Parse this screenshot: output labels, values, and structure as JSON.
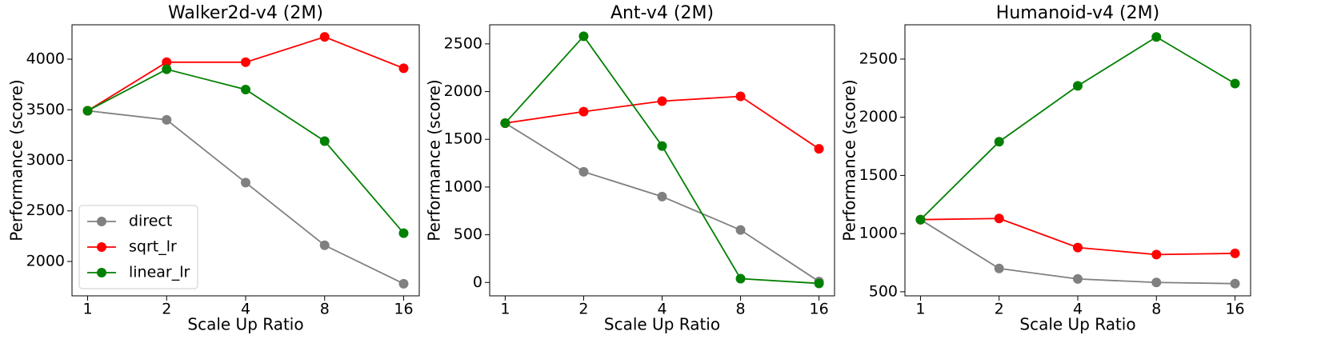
{
  "chart_data": [
    {
      "type": "line",
      "title": "Walker2d-v4 (2M)",
      "xlabel": "Scale Up Ratio",
      "ylabel": "Performance (score)",
      "categories": [
        "1",
        "2",
        "4",
        "8",
        "16"
      ],
      "ylim": [
        1660,
        4340
      ],
      "yticks": [
        2000,
        2500,
        3000,
        3500,
        4000
      ],
      "legend": "lower left",
      "series": [
        {
          "name": "direct",
          "color": "#808080",
          "values": [
            3490,
            3400,
            2780,
            2160,
            1780
          ]
        },
        {
          "name": "sqrt_lr",
          "color": "#ff0000",
          "values": [
            3490,
            3970,
            3970,
            4220,
            3910
          ]
        },
        {
          "name": "linear_lr",
          "color": "#008000",
          "values": [
            3490,
            3900,
            3700,
            3190,
            2280
          ]
        }
      ]
    },
    {
      "type": "line",
      "title": "Ant-v4 (2M)",
      "xlabel": "Scale Up Ratio",
      "ylabel": "Performance (score)",
      "categories": [
        "1",
        "2",
        "4",
        "8",
        "16"
      ],
      "ylim": [
        -140,
        2700
      ],
      "yticks": [
        0,
        500,
        1000,
        1500,
        2000,
        2500
      ],
      "series": [
        {
          "name": "direct",
          "color": "#808080",
          "values": [
            1670,
            1160,
            900,
            550,
            10
          ]
        },
        {
          "name": "sqrt_lr",
          "color": "#ff0000",
          "values": [
            1670,
            1790,
            1900,
            1950,
            1400
          ]
        },
        {
          "name": "linear_lr",
          "color": "#008000",
          "values": [
            1670,
            2580,
            1430,
            40,
            -10
          ]
        }
      ]
    },
    {
      "type": "line",
      "title": "Humanoid-v4 (2M)",
      "xlabel": "Scale Up Ratio",
      "ylabel": "Performance (score)",
      "categories": [
        "1",
        "2",
        "4",
        "8",
        "16"
      ],
      "ylim": [
        465,
        2795
      ],
      "yticks": [
        500,
        1000,
        1500,
        2000,
        2500
      ],
      "series": [
        {
          "name": "direct",
          "color": "#808080",
          "values": [
            1120,
            700,
            610,
            580,
            570
          ]
        },
        {
          "name": "sqrt_lr",
          "color": "#ff0000",
          "values": [
            1120,
            1130,
            880,
            820,
            830
          ]
        },
        {
          "name": "linear_lr",
          "color": "#008000",
          "values": [
            1120,
            1790,
            2270,
            2690,
            2290
          ]
        }
      ]
    }
  ]
}
